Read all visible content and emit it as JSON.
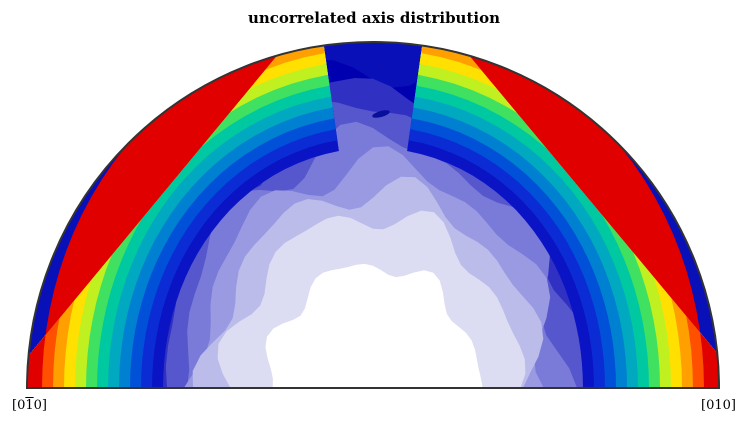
{
  "chart_data": {
    "type": "pole-figure",
    "title": "uncorrelated axis distribution",
    "projection": "upper half-disc",
    "colormap": "jet",
    "fill_colors": [
      "#ffffff",
      "#dcdcf2",
      "#bcbceb",
      "#9a9ae2",
      "#7a7ad9",
      "#5656cd",
      "#3030c2",
      "#0000b0",
      "#0a14c4",
      "#0b2cd4",
      "#0050d8",
      "#0080d0",
      "#00a8c0",
      "#00c8a0",
      "#40e060",
      "#c0f020",
      "#ffe000",
      "#ffa000",
      "#ff5000",
      "#e00000"
    ],
    "left_label": {
      "prefix": "[0",
      "bar": "1",
      "suffix": "0]"
    },
    "right_label": "[010]"
  }
}
